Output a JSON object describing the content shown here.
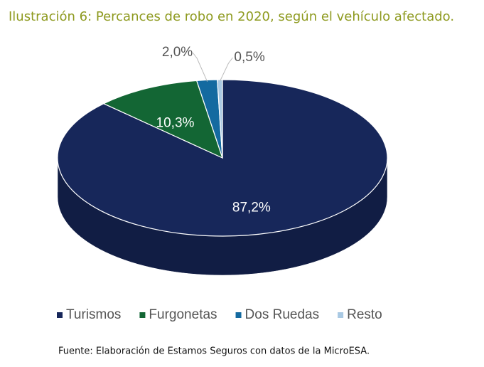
{
  "chart_data": {
    "type": "pie3d",
    "title": "Ilustración 6: Percances de robo en 2020, según el vehículo afectado.",
    "categories": [
      "Turismos",
      "Furgonetas",
      "Dos Ruedas",
      "Resto"
    ],
    "values": [
      87.2,
      10.3,
      2.0,
      0.5
    ],
    "value_labels": [
      "87,2%",
      "10,3%",
      "2,0%",
      "0,5%"
    ],
    "colors": [
      "#17275a",
      "#136634",
      "#146aa0",
      "#a9c9e3"
    ],
    "source": "Fuente: Elaboración de Estamos Seguros con datos de la MicroESA."
  }
}
